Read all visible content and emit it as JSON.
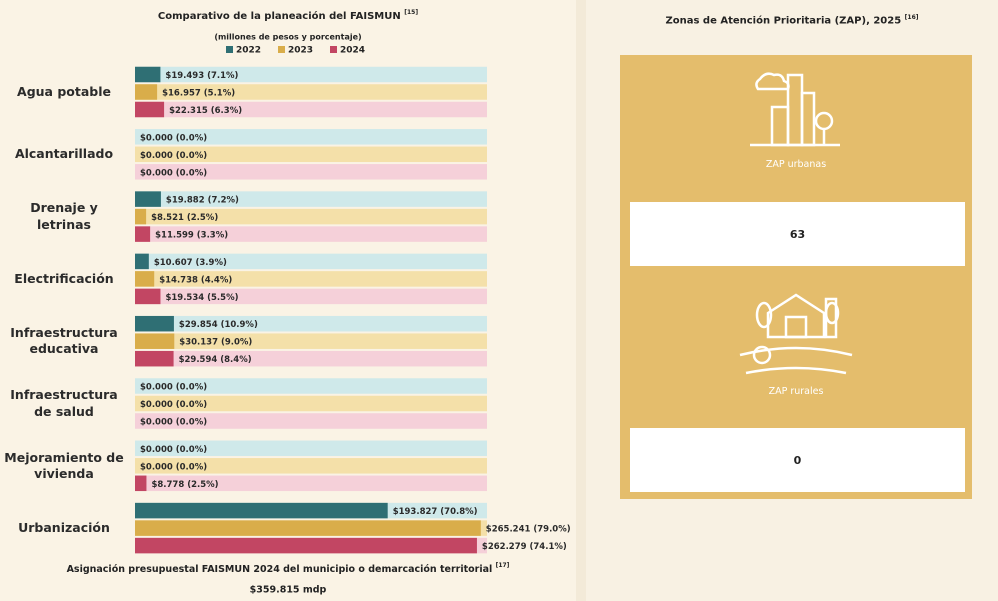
{
  "chart_data": {
    "type": "barh",
    "title": "Comparativo de la planeación del FAISMUN",
    "title_ref": "[15]",
    "subtitle": "(millones de pesos y porcentaje)",
    "categories": [
      "Agua potable",
      "Alcantarillado",
      "Drenaje y letrinas",
      "Electrificación",
      "Infraestructura educativa",
      "Infraestructura de salud",
      "Mejoramiento de vivienda",
      "Urbanización"
    ],
    "series": [
      {
        "name": "2022",
        "color": "#2f6f74",
        "track": "#cfe9ea",
        "values": [
          19.493,
          0,
          19.882,
          10.607,
          29.854,
          0,
          0,
          193.827
        ],
        "value_labels": [
          "$19.493 (7.1%)",
          "$0.000 (0.0%)",
          "$19.882 (7.2%)",
          "$10.607 (3.9%)",
          "$29.854 (10.9%)",
          "$0.000 (0.0%)",
          "$0.000 (0.0%)",
          "$193.827 (70.8%)"
        ]
      },
      {
        "name": "2023",
        "color": "#d9ad4a",
        "track": "#f4e0a9",
        "values": [
          16.957,
          0,
          8.521,
          14.738,
          30.137,
          0,
          0,
          265.241
        ],
        "value_labels": [
          "$16.957 (5.1%)",
          "$0.000 (0.0%)",
          "$8.521 (2.5%)",
          "$14.738 (4.4%)",
          "$30.137 (9.0%)",
          "$0.000 (0.0%)",
          "$0.000 (0.0%)",
          "$265.241 (79.0%)"
        ]
      },
      {
        "name": "2024",
        "color": "#c24663",
        "track": "#f5d0d9",
        "values": [
          22.315,
          0,
          11.599,
          19.534,
          29.594,
          0,
          8.778,
          262.279
        ],
        "value_labels": [
          "$22.315 (6.3%)",
          "$0.000 (0.0%)",
          "$11.599 (3.3%)",
          "$19.534 (5.5%)",
          "$29.594 (8.4%)",
          "$0.000 (0.0%)",
          "$8.778 (2.5%)",
          "$262.279 (74.1%)"
        ]
      }
    ],
    "xlim": [
      0,
      270
    ]
  },
  "footer": {
    "label": "Asignación presupuestal FAISMUN 2024 del municipio o demarcación territorial",
    "ref": "[17]",
    "amount": "$359.815 mdp"
  },
  "zap_panel": {
    "title": "Zonas de Atención Prioritaria (ZAP), 2025",
    "ref": "[16]",
    "items": [
      {
        "label": "ZAP urbanas",
        "value": 63
      },
      {
        "label": "ZAP rurales",
        "value": 0
      }
    ]
  }
}
